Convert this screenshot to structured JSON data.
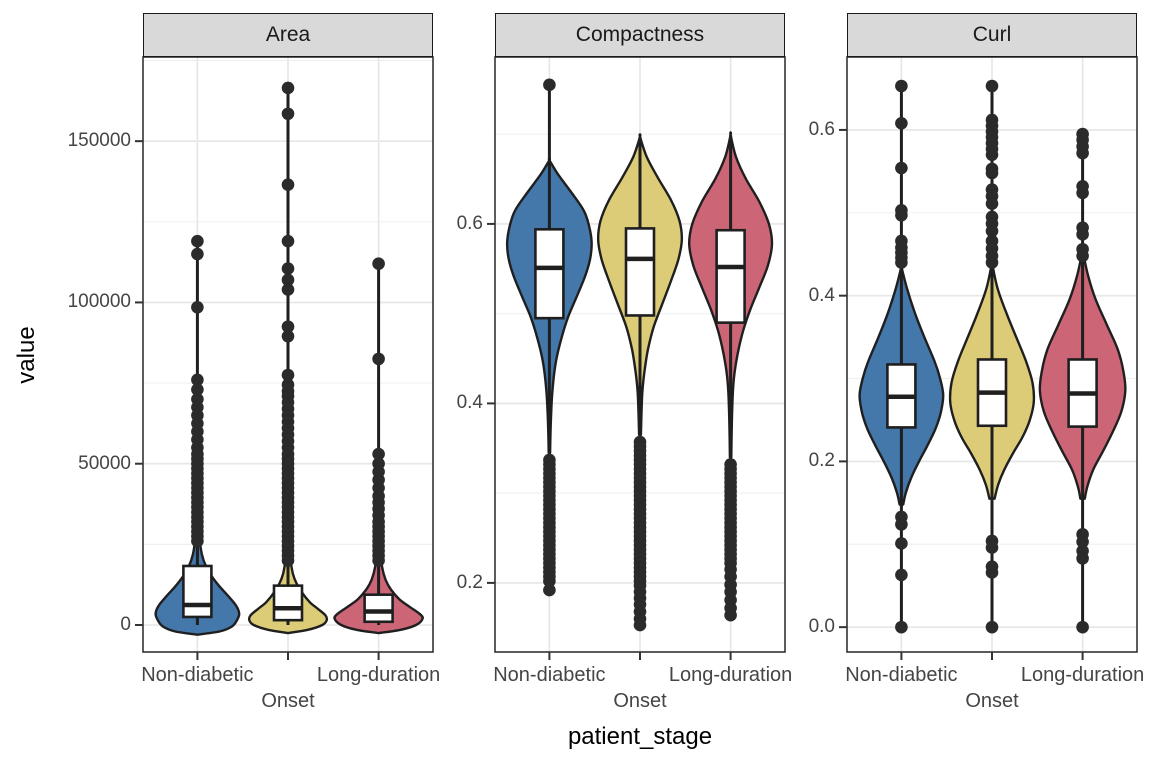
{
  "figure": {
    "y_axis_title": "value",
    "x_axis_title": "patient_stage",
    "categories": [
      "Non-diabetic",
      "Onset",
      "Long-duration"
    ],
    "colors": {
      "group_fills": {
        "Non-diabetic": "#4477AA",
        "Onset": "#DDCC77",
        "Long-duration": "#CC6677"
      },
      "violin_outline": "#1f1f1f",
      "box_outline": "#1f1f1f",
      "box_fill": "#ffffff",
      "outlier_dot": "#2b2b2b",
      "strip_background": "#d9d9d9",
      "strip_border": "#1a1a1a",
      "panel_border": "#333333",
      "grid_major": "#e6e6e6",
      "grid_minor": "#f0f0f0",
      "axis_tick": "#333333",
      "axis_text": "#454545",
      "background": "#ffffff"
    }
  },
  "chart_data": [
    {
      "type": "violin+box",
      "facet": "Area",
      "ylim": [
        -8370,
        176090
      ],
      "yticks": [
        {
          "value": 0,
          "label": "0"
        },
        {
          "value": 50000,
          "label": "50000"
        },
        {
          "value": 100000,
          "label": "100000"
        },
        {
          "value": 150000,
          "label": "150000"
        }
      ],
      "yticks_minor": [
        25000,
        75000,
        125000,
        175000
      ],
      "groups": [
        {
          "name": "Non-diabetic",
          "violin": [
            [
              -3000,
              0
            ],
            [
              -2000,
              0.5
            ],
            [
              -500,
              0.78
            ],
            [
              1500,
              0.9
            ],
            [
              3500,
              0.95
            ],
            [
              6000,
              0.88
            ],
            [
              9000,
              0.7
            ],
            [
              12000,
              0.5
            ],
            [
              15000,
              0.33
            ],
            [
              18000,
              0.2
            ],
            [
              22000,
              0.1
            ],
            [
              27000,
              0.05
            ],
            [
              35000,
              0.02
            ],
            [
              45000,
              0.012
            ]
          ],
          "box": {
            "q1": 2500,
            "median": 6200,
            "q3": 18300
          },
          "spine": [
            0,
            119000
          ],
          "outliers": [
            26000,
            27500,
            29000,
            30500,
            32000,
            33500,
            35000,
            36500,
            38000,
            39500,
            41000,
            42500,
            44000,
            45500,
            47000,
            48500,
            50000,
            51500,
            53000,
            55000,
            57500,
            60000,
            62500,
            65000,
            67500,
            70000,
            73000,
            76000,
            98500,
            115000,
            119000
          ]
        },
        {
          "name": "Onset",
          "violin": [
            [
              -2500,
              0
            ],
            [
              -1500,
              0.45
            ],
            [
              0,
              0.78
            ],
            [
              1500,
              0.88
            ],
            [
              3000,
              0.85
            ],
            [
              5000,
              0.68
            ],
            [
              7000,
              0.5
            ],
            [
              10000,
              0.32
            ],
            [
              13000,
              0.19
            ],
            [
              16000,
              0.11
            ],
            [
              20000,
              0.06
            ],
            [
              26000,
              0.03
            ],
            [
              35000,
              0.015
            ]
          ],
          "box": {
            "q1": 1500,
            "median": 5200,
            "q3": 12200
          },
          "spine": [
            0,
            166500
          ],
          "outliers": [
            20000,
            21500,
            23000,
            24500,
            26000,
            27500,
            29000,
            30500,
            32000,
            33500,
            35000,
            36500,
            38000,
            39500,
            41000,
            42500,
            44000,
            45500,
            47000,
            48500,
            50000,
            51500,
            53000,
            55000,
            57000,
            59000,
            61000,
            63000,
            65000,
            67000,
            69000,
            71000,
            72500,
            74500,
            77500,
            89500,
            92500,
            104000,
            107000,
            110500,
            119000,
            136500,
            158500,
            166500
          ]
        },
        {
          "name": "Long-duration",
          "violin": [
            [
              -2500,
              0
            ],
            [
              -1500,
              0.5
            ],
            [
              0,
              0.85
            ],
            [
              2000,
              1.0
            ],
            [
              3500,
              0.93
            ],
            [
              5500,
              0.72
            ],
            [
              8000,
              0.47
            ],
            [
              11000,
              0.28
            ],
            [
              14000,
              0.16
            ],
            [
              18000,
              0.08
            ],
            [
              24000,
              0.04
            ],
            [
              32000,
              0.015
            ]
          ],
          "box": {
            "q1": 1000,
            "median": 4200,
            "q3": 9400
          },
          "spine": [
            0,
            112000
          ],
          "outliers": [
            20000,
            21500,
            23000,
            24500,
            26000,
            27500,
            29000,
            30500,
            32000,
            34000,
            36000,
            38000,
            40000,
            42500,
            45000,
            47500,
            50000,
            53000,
            82500,
            112000
          ]
        }
      ]
    },
    {
      "type": "violin+box",
      "facet": "Compactness",
      "ylim": [
        0.123,
        0.786
      ],
      "yticks": [
        {
          "value": 0.2,
          "label": "0.2"
        },
        {
          "value": 0.4,
          "label": "0.4"
        },
        {
          "value": 0.6,
          "label": "0.6"
        }
      ],
      "yticks_minor": [
        0.3,
        0.5,
        0.7
      ],
      "groups": [
        {
          "name": "Non-diabetic",
          "violin": [
            [
              0.671,
              0
            ],
            [
              0.655,
              0.2
            ],
            [
              0.635,
              0.5
            ],
            [
              0.615,
              0.78
            ],
            [
              0.598,
              0.9
            ],
            [
              0.58,
              0.96
            ],
            [
              0.562,
              0.93
            ],
            [
              0.543,
              0.82
            ],
            [
              0.52,
              0.63
            ],
            [
              0.497,
              0.43
            ],
            [
              0.472,
              0.27
            ],
            [
              0.447,
              0.15
            ],
            [
              0.42,
              0.08
            ],
            [
              0.39,
              0.04
            ],
            [
              0.345,
              0.015
            ]
          ],
          "box": {
            "q1": 0.495,
            "median": 0.551,
            "q3": 0.594
          },
          "spine": [
            0.192,
            0.755
          ],
          "outliers": [
            0.755,
            0.337,
            0.332,
            0.327,
            0.322,
            0.317,
            0.312,
            0.307,
            0.302,
            0.297,
            0.292,
            0.287,
            0.282,
            0.277,
            0.272,
            0.267,
            0.262,
            0.257,
            0.252,
            0.247,
            0.242,
            0.237,
            0.232,
            0.227,
            0.222,
            0.217,
            0.212,
            0.207,
            0.202,
            0.192
          ]
        },
        {
          "name": "Onset",
          "violin": [
            [
              0.697,
              0
            ],
            [
              0.675,
              0.15
            ],
            [
              0.652,
              0.4
            ],
            [
              0.627,
              0.7
            ],
            [
              0.603,
              0.9
            ],
            [
              0.582,
              0.95
            ],
            [
              0.56,
              0.87
            ],
            [
              0.536,
              0.7
            ],
            [
              0.51,
              0.5
            ],
            [
              0.485,
              0.31
            ],
            [
              0.46,
              0.18
            ],
            [
              0.435,
              0.1
            ],
            [
              0.41,
              0.05
            ],
            [
              0.365,
              0.02
            ]
          ],
          "box": {
            "q1": 0.498,
            "median": 0.561,
            "q3": 0.595
          },
          "spine": [
            0.153,
            0.697
          ],
          "outliers": [
            0.357,
            0.352,
            0.347,
            0.342,
            0.337,
            0.332,
            0.327,
            0.322,
            0.317,
            0.312,
            0.307,
            0.302,
            0.297,
            0.292,
            0.287,
            0.282,
            0.277,
            0.272,
            0.267,
            0.262,
            0.257,
            0.252,
            0.247,
            0.242,
            0.237,
            0.232,
            0.227,
            0.222,
            0.217,
            0.212,
            0.207,
            0.202,
            0.197,
            0.19,
            0.183,
            0.176,
            0.168,
            0.16,
            0.153
          ]
        },
        {
          "name": "Long-duration",
          "violin": [
            [
              0.699,
              0
            ],
            [
              0.675,
              0.12
            ],
            [
              0.65,
              0.35
            ],
            [
              0.625,
              0.65
            ],
            [
              0.6,
              0.87
            ],
            [
              0.578,
              0.94
            ],
            [
              0.554,
              0.85
            ],
            [
              0.53,
              0.66
            ],
            [
              0.505,
              0.45
            ],
            [
              0.48,
              0.28
            ],
            [
              0.455,
              0.16
            ],
            [
              0.43,
              0.08
            ],
            [
              0.4,
              0.04
            ],
            [
              0.34,
              0.015
            ]
          ],
          "box": {
            "q1": 0.49,
            "median": 0.552,
            "q3": 0.593
          },
          "spine": [
            0.164,
            0.699
          ],
          "outliers": [
            0.332,
            0.327,
            0.322,
            0.317,
            0.312,
            0.307,
            0.302,
            0.297,
            0.292,
            0.287,
            0.282,
            0.277,
            0.272,
            0.267,
            0.262,
            0.257,
            0.252,
            0.247,
            0.242,
            0.237,
            0.232,
            0.227,
            0.222,
            0.215,
            0.207,
            0.198,
            0.19,
            0.181,
            0.172,
            0.164
          ]
        }
      ]
    },
    {
      "type": "violin+box",
      "facet": "Curl",
      "ylim": [
        -0.03,
        0.688
      ],
      "yticks": [
        {
          "value": 0.0,
          "label": "0.0"
        },
        {
          "value": 0.2,
          "label": "0.2"
        },
        {
          "value": 0.4,
          "label": "0.4"
        },
        {
          "value": 0.6,
          "label": "0.6"
        }
      ],
      "yticks_minor": [
        0.1,
        0.3,
        0.5
      ],
      "groups": [
        {
          "name": "Non-diabetic",
          "violin": [
            [
              0.435,
              0
            ],
            [
              0.41,
              0.12
            ],
            [
              0.38,
              0.3
            ],
            [
              0.35,
              0.52
            ],
            [
              0.32,
              0.76
            ],
            [
              0.3,
              0.88
            ],
            [
              0.28,
              0.95
            ],
            [
              0.26,
              0.9
            ],
            [
              0.24,
              0.78
            ],
            [
              0.22,
              0.6
            ],
            [
              0.2,
              0.4
            ],
            [
              0.18,
              0.22
            ],
            [
              0.162,
              0.1
            ],
            [
              0.148,
              0.04
            ]
          ],
          "box": {
            "q1": 0.241,
            "median": 0.278,
            "q3": 0.317
          },
          "spine": [
            0.0,
            0.653
          ],
          "outliers": [
            0.653,
            0.608,
            0.554,
            0.503,
            0.497,
            0.466,
            0.458,
            0.452,
            0.446,
            0.44,
            0.133,
            0.124,
            0.101,
            0.063,
            0.0
          ]
        },
        {
          "name": "Onset",
          "violin": [
            [
              0.44,
              0
            ],
            [
              0.41,
              0.12
            ],
            [
              0.38,
              0.32
            ],
            [
              0.35,
              0.55
            ],
            [
              0.32,
              0.78
            ],
            [
              0.295,
              0.92
            ],
            [
              0.272,
              0.95
            ],
            [
              0.25,
              0.86
            ],
            [
              0.23,
              0.7
            ],
            [
              0.21,
              0.48
            ],
            [
              0.19,
              0.28
            ],
            [
              0.172,
              0.14
            ],
            [
              0.155,
              0.06
            ]
          ],
          "box": {
            "q1": 0.243,
            "median": 0.283,
            "q3": 0.323
          },
          "spine": [
            0.0,
            0.653
          ],
          "outliers": [
            0.653,
            0.612,
            0.605,
            0.598,
            0.591,
            0.584,
            0.577,
            0.57,
            0.553,
            0.548,
            0.528,
            0.52,
            0.511,
            0.495,
            0.487,
            0.478,
            0.466,
            0.457,
            0.448,
            0.44,
            0.104,
            0.096,
            0.073,
            0.066,
            0.0
          ]
        },
        {
          "name": "Long-duration",
          "violin": [
            [
              0.455,
              0
            ],
            [
              0.425,
              0.12
            ],
            [
              0.395,
              0.3
            ],
            [
              0.365,
              0.55
            ],
            [
              0.335,
              0.8
            ],
            [
              0.308,
              0.93
            ],
            [
              0.285,
              0.97
            ],
            [
              0.26,
              0.88
            ],
            [
              0.235,
              0.68
            ],
            [
              0.21,
              0.44
            ],
            [
              0.19,
              0.24
            ],
            [
              0.17,
              0.11
            ],
            [
              0.155,
              0.05
            ]
          ],
          "box": {
            "q1": 0.242,
            "median": 0.282,
            "q3": 0.323
          },
          "spine": [
            0.0,
            0.595
          ],
          "outliers": [
            0.595,
            0.588,
            0.58,
            0.572,
            0.532,
            0.524,
            0.482,
            0.474,
            0.456,
            0.448,
            0.112,
            0.103,
            0.092,
            0.083,
            0.0
          ]
        }
      ]
    }
  ]
}
